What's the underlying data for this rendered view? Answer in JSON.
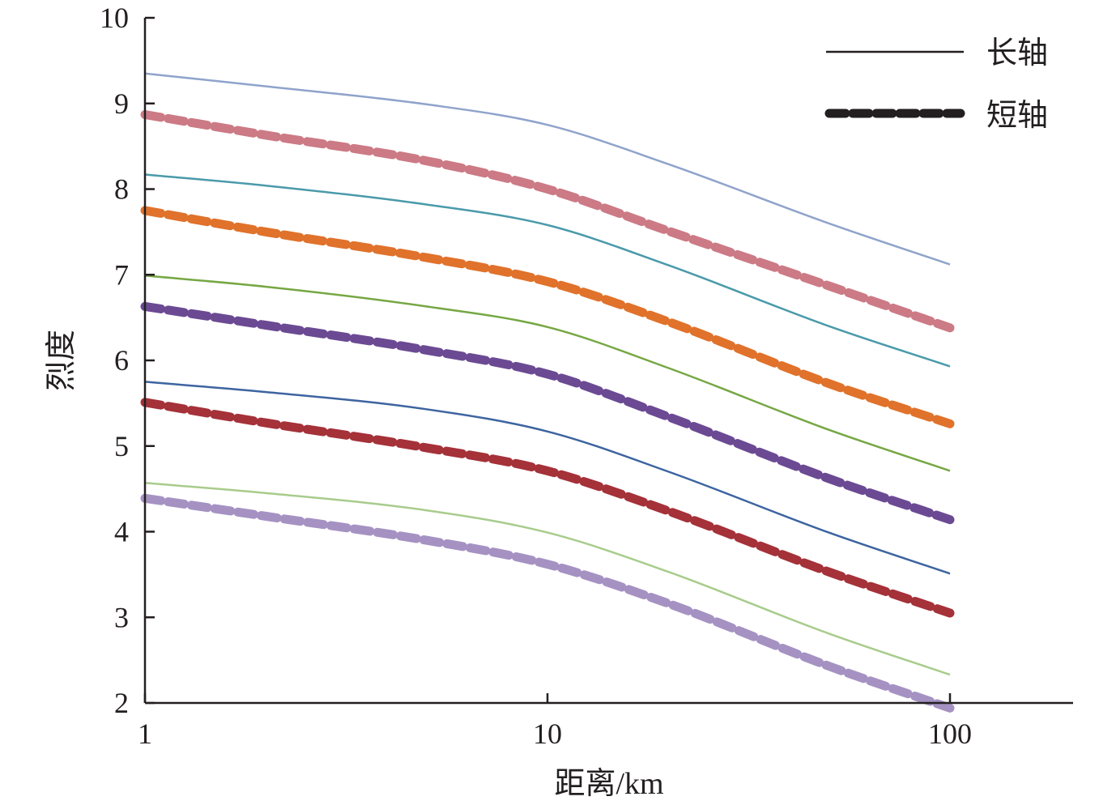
{
  "chart_data": {
    "type": "line",
    "xlabel": "距离/km",
    "ylabel": "烈度",
    "x_scale": "log",
    "xlim": [
      1,
      200
    ],
    "ylim": [
      2,
      10
    ],
    "x_ticks": [
      "1",
      "10",
      "100"
    ],
    "y_ticks": [
      "2",
      "3",
      "4",
      "5",
      "6",
      "7",
      "8",
      "9",
      "10"
    ],
    "grid": false,
    "legend_position": "top-right",
    "legend": [
      {
        "label": "长轴",
        "style": "solid",
        "color": "#231f20"
      },
      {
        "label": "短轴",
        "style": "dashed",
        "color": "#231f20"
      }
    ],
    "series": [
      {
        "axis": "长轴",
        "color": "#8fa3cb",
        "x": [
          1,
          2,
          5,
          10,
          20,
          50,
          100
        ],
        "y": [
          9.35,
          9.2,
          8.99,
          8.75,
          8.29,
          7.6,
          7.12
        ]
      },
      {
        "axis": "短轴",
        "color": "#cc7a85",
        "x": [
          1,
          2,
          5,
          10,
          20,
          50,
          100
        ],
        "y": [
          8.87,
          8.63,
          8.33,
          8.0,
          7.51,
          6.87,
          6.38
        ]
      },
      {
        "axis": "长轴",
        "color": "#4a9aaa",
        "x": [
          1,
          2,
          5,
          10,
          20,
          50,
          100
        ],
        "y": [
          8.17,
          8.04,
          7.82,
          7.58,
          7.11,
          6.4,
          5.93
        ]
      },
      {
        "axis": "短轴",
        "color": "#e0722b",
        "x": [
          1,
          2,
          5,
          10,
          20,
          50,
          100
        ],
        "y": [
          7.75,
          7.5,
          7.2,
          6.92,
          6.45,
          5.73,
          5.26
        ]
      },
      {
        "axis": "长轴",
        "color": "#76a743",
        "x": [
          1,
          2,
          5,
          10,
          20,
          50,
          100
        ],
        "y": [
          6.99,
          6.86,
          6.63,
          6.39,
          5.91,
          5.19,
          4.71
        ]
      },
      {
        "axis": "短轴",
        "color": "#6b4a93",
        "x": [
          1,
          2,
          5,
          10,
          20,
          50,
          100
        ],
        "y": [
          6.63,
          6.41,
          6.12,
          5.84,
          5.34,
          4.62,
          4.14
        ]
      },
      {
        "axis": "长轴",
        "color": "#3d64a0",
        "x": [
          1,
          2,
          5,
          10,
          20,
          50,
          100
        ],
        "y": [
          5.75,
          5.63,
          5.43,
          5.17,
          4.7,
          3.99,
          3.51
        ]
      },
      {
        "axis": "短轴",
        "color": "#a53139",
        "x": [
          1,
          2,
          5,
          10,
          20,
          50,
          100
        ],
        "y": [
          5.51,
          5.27,
          4.98,
          4.71,
          4.24,
          3.53,
          3.05
        ]
      },
      {
        "axis": "长轴",
        "color": "#a8cc8c",
        "x": [
          1,
          2,
          5,
          10,
          20,
          50,
          100
        ],
        "y": [
          4.57,
          4.45,
          4.25,
          3.99,
          3.53,
          2.81,
          2.33
        ]
      },
      {
        "axis": "短轴",
        "color": "#a592c2",
        "x": [
          1,
          2,
          5,
          10,
          20,
          50,
          100
        ],
        "y": [
          4.39,
          4.18,
          3.9,
          3.62,
          3.16,
          2.43,
          1.94
        ]
      }
    ]
  }
}
